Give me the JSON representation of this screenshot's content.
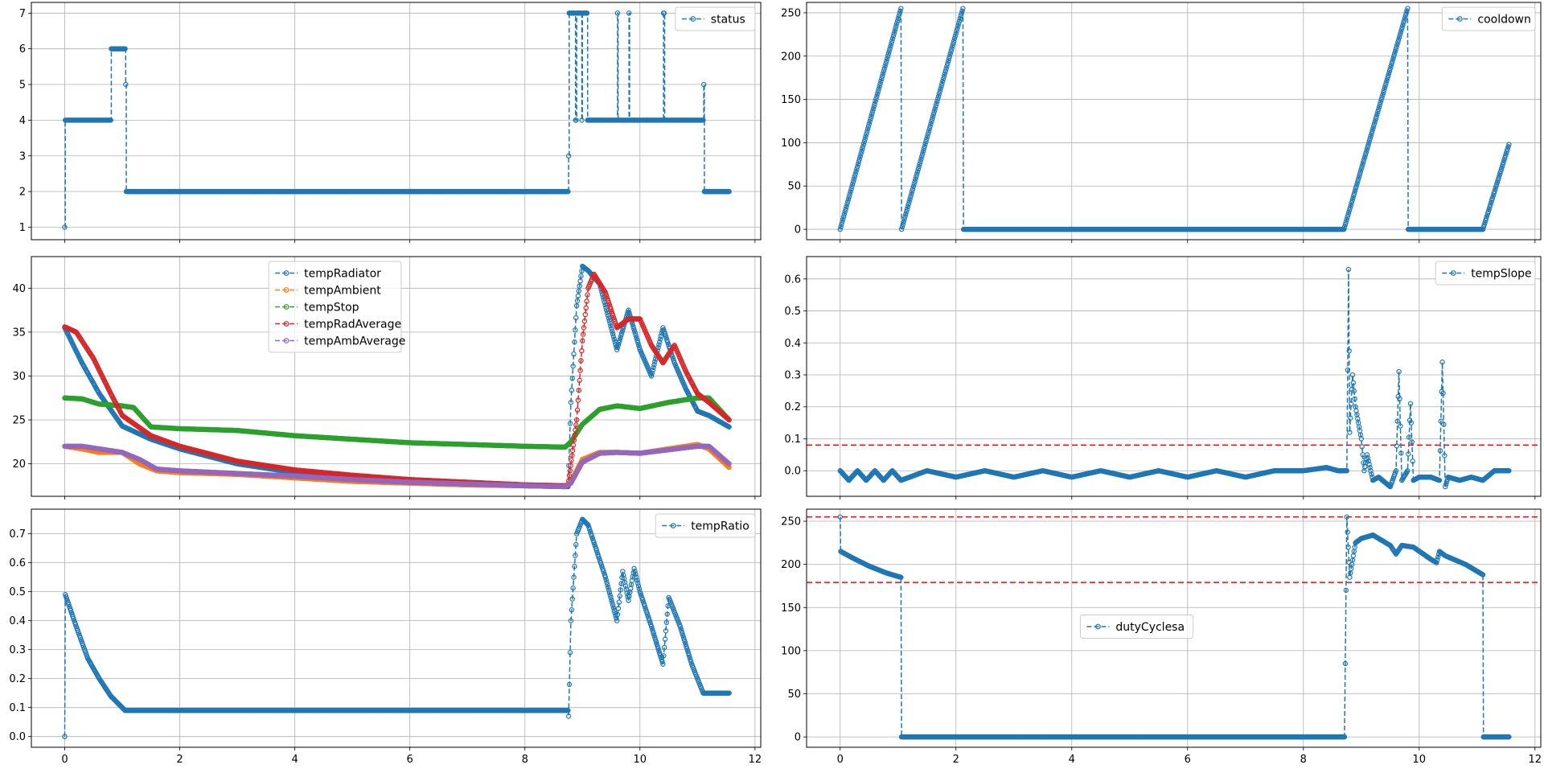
{
  "figure": {
    "title": ""
  },
  "colors": {
    "blue": "#1f77b4",
    "orange": "#ff7f0e",
    "green": "#2ca02c",
    "red": "#d62728",
    "purple": "#9467bd",
    "threshold": "#ff0000"
  },
  "chart_data": [
    {
      "id": "status",
      "type": "line",
      "xlim": [
        -0.58,
        12.1
      ],
      "ylim": [
        0.65,
        7.3
      ],
      "xticks": [
        0,
        2,
        4,
        6,
        8,
        10,
        12
      ],
      "yticks": [
        1,
        2,
        3,
        4,
        5,
        6,
        7
      ],
      "show_xtick_labels": false,
      "grid": true,
      "legend": "top-right",
      "series": [
        {
          "name": "status",
          "color": "#1f77b4",
          "style": "step",
          "x": [
            0,
            0.01,
            0.8,
            0.81,
            1.05,
            1.06,
            1.07,
            8.75,
            8.76,
            8.77,
            8.78,
            8.88,
            8.89,
            8.9,
            8.98,
            8.99,
            9.0,
            9.08,
            9.09,
            9.1,
            9.6,
            9.61,
            9.62,
            9.8,
            9.81,
            9.82,
            10.4,
            10.41,
            10.43,
            11.1,
            11.11,
            11.12,
            11.55
          ],
          "y": [
            1,
            4,
            4,
            6,
            6,
            5,
            2,
            2,
            3,
            7,
            7,
            4,
            4,
            7,
            7,
            4,
            7,
            7,
            4,
            4,
            4,
            7,
            4,
            4,
            7,
            4,
            4,
            7,
            4,
            4,
            5,
            2,
            2
          ]
        }
      ]
    },
    {
      "id": "cooldown",
      "type": "line",
      "xlim": [
        -0.58,
        12.1
      ],
      "ylim": [
        -12,
        262
      ],
      "xticks": [
        0,
        2,
        4,
        6,
        8,
        10,
        12
      ],
      "yticks": [
        0,
        50,
        100,
        150,
        200,
        250
      ],
      "show_xtick_labels": false,
      "grid": true,
      "legend": "top-right",
      "series": [
        {
          "name": "cooldown",
          "color": "#1f77b4",
          "style": "line",
          "x": [
            0,
            1.05,
            1.06,
            2.12,
            2.13,
            8.7,
            9.8,
            9.81,
            11.1,
            11.55
          ],
          "y": [
            0,
            255,
            0,
            255,
            0,
            0,
            255,
            0,
            0,
            98
          ]
        }
      ]
    },
    {
      "id": "temperatures",
      "type": "line",
      "xlim": [
        -0.58,
        12.1
      ],
      "ylim": [
        16.3,
        43.6
      ],
      "xticks": [
        0,
        2,
        4,
        6,
        8,
        10,
        12
      ],
      "yticks": [
        20,
        25,
        30,
        35,
        40
      ],
      "show_xtick_labels": false,
      "grid": true,
      "legend": "top-center",
      "series": [
        {
          "name": "tempRadiator",
          "color": "#1f77b4",
          "style": "line",
          "x": [
            0,
            0.3,
            0.6,
            1.0,
            1.5,
            2.0,
            3.0,
            4.0,
            5.0,
            6.0,
            7.0,
            8.0,
            8.75,
            8.8,
            8.9,
            9.0,
            9.1,
            9.3,
            9.6,
            9.8,
            10.0,
            10.2,
            10.4,
            10.6,
            10.8,
            11.0,
            11.2,
            11.55
          ],
          "y": [
            35.5,
            31.5,
            28.0,
            24.3,
            22.8,
            21.7,
            20.0,
            19.0,
            18.4,
            18.0,
            17.7,
            17.5,
            17.4,
            27.0,
            38.0,
            42.5,
            42.0,
            40.5,
            33.0,
            37.5,
            33.0,
            30.0,
            35.5,
            31.5,
            28.5,
            26.0,
            25.5,
            24.2
          ]
        },
        {
          "name": "tempAmbient",
          "color": "#ff7f0e",
          "style": "line",
          "x": [
            0,
            0.3,
            0.6,
            1.0,
            1.3,
            1.6,
            2.0,
            3.0,
            4.0,
            5.0,
            6.0,
            7.0,
            8.0,
            8.7,
            8.8,
            9.0,
            9.3,
            9.6,
            10.0,
            10.5,
            11.0,
            11.2,
            11.55
          ],
          "y": [
            22.0,
            21.7,
            21.3,
            21.3,
            20.0,
            19.2,
            19.0,
            18.8,
            18.4,
            18.0,
            17.8,
            17.6,
            17.5,
            17.4,
            18.0,
            20.5,
            21.3,
            21.3,
            21.2,
            21.7,
            22.2,
            21.7,
            19.6
          ]
        },
        {
          "name": "tempStop",
          "color": "#2ca02c",
          "style": "line",
          "x": [
            0,
            0.3,
            0.6,
            1.0,
            1.2,
            1.5,
            2.0,
            3.0,
            4.0,
            5.0,
            6.0,
            7.0,
            8.0,
            8.7,
            8.8,
            9.0,
            9.3,
            9.6,
            10.0,
            10.5,
            11.0,
            11.2,
            11.55
          ],
          "y": [
            27.5,
            27.4,
            26.8,
            26.6,
            26.4,
            24.2,
            24.0,
            23.8,
            23.2,
            22.8,
            22.4,
            22.2,
            22.0,
            21.9,
            22.5,
            24.5,
            26.2,
            26.6,
            26.3,
            27.0,
            27.5,
            27.5,
            25.0
          ]
        },
        {
          "name": "tempRadAverage",
          "color": "#d62728",
          "style": "line",
          "x": [
            0,
            0.2,
            0.5,
            0.8,
            1.0,
            1.5,
            2.0,
            3.0,
            4.0,
            5.0,
            6.0,
            7.0,
            8.0,
            8.75,
            8.9,
            9.0,
            9.1,
            9.2,
            9.4,
            9.6,
            9.8,
            10.0,
            10.2,
            10.4,
            10.6,
            10.8,
            11.0,
            11.2,
            11.55
          ],
          "y": [
            35.6,
            35.0,
            32.0,
            28.0,
            25.5,
            23.2,
            22.0,
            20.3,
            19.3,
            18.7,
            18.2,
            17.9,
            17.6,
            17.5,
            25.0,
            34.0,
            40.0,
            41.6,
            39.5,
            35.5,
            36.5,
            36.5,
            33.5,
            31.5,
            33.5,
            30.5,
            28.0,
            27.0,
            25.0
          ]
        },
        {
          "name": "tempAmbAverage",
          "color": "#9467bd",
          "style": "line",
          "x": [
            0,
            0.3,
            0.6,
            1.0,
            1.3,
            1.6,
            2.0,
            3.0,
            4.0,
            5.0,
            6.0,
            7.0,
            8.0,
            8.7,
            8.8,
            9.0,
            9.3,
            9.6,
            10.0,
            10.5,
            11.0,
            11.2,
            11.55
          ],
          "y": [
            22.0,
            22.0,
            21.7,
            21.3,
            20.5,
            19.4,
            19.2,
            18.9,
            18.6,
            18.2,
            17.9,
            17.7,
            17.5,
            17.4,
            17.8,
            20.2,
            21.2,
            21.3,
            21.2,
            21.6,
            22.0,
            22.0,
            20.0
          ]
        }
      ]
    },
    {
      "id": "tempSlope",
      "type": "line",
      "xlim": [
        -0.58,
        12.1
      ],
      "ylim": [
        -0.08,
        0.67
      ],
      "xticks": [
        0,
        2,
        4,
        6,
        8,
        10,
        12
      ],
      "yticks": [
        0.0,
        0.1,
        0.2,
        0.3,
        0.4,
        0.5,
        0.6
      ],
      "show_xtick_labels": false,
      "grid": true,
      "legend": "top-right",
      "hlines": [
        0.08
      ],
      "series": [
        {
          "name": "tempSlope",
          "color": "#1f77b4",
          "style": "line",
          "x": [
            0,
            0.15,
            0.3,
            0.45,
            0.6,
            0.75,
            0.9,
            1.05,
            1.5,
            2.0,
            2.5,
            3.0,
            3.5,
            4.0,
            4.5,
            5.0,
            5.5,
            6.0,
            6.5,
            7.0,
            7.5,
            8.0,
            8.4,
            8.6,
            8.75,
            8.78,
            8.8,
            8.85,
            8.9,
            9.0,
            9.05,
            9.1,
            9.2,
            9.3,
            9.5,
            9.6,
            9.65,
            9.7,
            9.8,
            9.85,
            9.9,
            10.0,
            10.2,
            10.35,
            10.4,
            10.45,
            10.5,
            10.7,
            10.9,
            11.1,
            11.3,
            11.55
          ],
          "y": [
            0,
            -0.03,
            0,
            -0.03,
            0,
            -0.03,
            0,
            -0.03,
            0,
            -0.02,
            0,
            -0.02,
            0,
            -0.02,
            0,
            -0.02,
            0,
            -0.02,
            0,
            -0.02,
            0,
            0,
            0.01,
            0,
            0,
            0.63,
            0.12,
            0.3,
            0.2,
            0.1,
            0.0,
            0.05,
            -0.03,
            -0.02,
            -0.05,
            0.0,
            0.31,
            -0.03,
            0.0,
            0.21,
            -0.03,
            -0.02,
            -0.02,
            -0.03,
            0.34,
            -0.05,
            -0.02,
            -0.03,
            -0.02,
            -0.03,
            0.0,
            0.0
          ]
        }
      ]
    },
    {
      "id": "tempRatio",
      "type": "line",
      "xlim": [
        -0.58,
        12.1
      ],
      "ylim": [
        -0.037,
        0.785
      ],
      "xticks": [
        0,
        2,
        4,
        6,
        8,
        10,
        12
      ],
      "yticks": [
        0.0,
        0.1,
        0.2,
        0.3,
        0.4,
        0.5,
        0.6,
        0.7
      ],
      "xtick_labels": [
        "0",
        "2",
        "4",
        "6",
        "8",
        "10",
        "12"
      ],
      "show_xtick_labels": true,
      "grid": true,
      "legend": "top-right",
      "series": [
        {
          "name": "tempRatio",
          "color": "#1f77b4",
          "style": "line",
          "x": [
            0,
            0.01,
            0.2,
            0.4,
            0.6,
            0.8,
            1.0,
            1.05,
            8.75,
            8.76,
            8.8,
            8.9,
            9.0,
            9.1,
            9.2,
            9.4,
            9.6,
            9.7,
            9.8,
            9.9,
            10.0,
            10.2,
            10.4,
            10.5,
            10.7,
            10.9,
            11.1,
            11.55
          ],
          "y": [
            0,
            0.49,
            0.38,
            0.27,
            0.2,
            0.14,
            0.1,
            0.09,
            0.09,
            0.07,
            0.4,
            0.7,
            0.75,
            0.73,
            0.67,
            0.55,
            0.4,
            0.57,
            0.47,
            0.58,
            0.5,
            0.38,
            0.25,
            0.48,
            0.38,
            0.25,
            0.15,
            0.15
          ]
        }
      ]
    },
    {
      "id": "dutyCyclesa",
      "type": "line",
      "xlim": [
        -0.58,
        12.1
      ],
      "ylim": [
        -12,
        264
      ],
      "xticks": [
        0,
        2,
        4,
        6,
        8,
        10,
        12
      ],
      "yticks": [
        0,
        50,
        100,
        150,
        200,
        250
      ],
      "xtick_labels": [
        "0",
        "2",
        "4",
        "6",
        "8",
        "10",
        "12"
      ],
      "show_xtick_labels": true,
      "grid": true,
      "legend": "center",
      "hlines": [
        255,
        179
      ],
      "series": [
        {
          "name": "dutyCyclesa",
          "color": "#1f77b4",
          "style": "line",
          "x": [
            0,
            0.01,
            0.2,
            0.5,
            0.8,
            1.05,
            1.06,
            8.7,
            8.71,
            8.75,
            8.8,
            8.9,
            9.0,
            9.2,
            9.5,
            9.6,
            9.7,
            9.9,
            10.2,
            10.3,
            10.35,
            10.45,
            10.8,
            11.05,
            11.1,
            11.11,
            11.55
          ],
          "y": [
            255,
            215,
            208,
            198,
            190,
            185,
            0,
            0,
            0,
            255,
            185,
            225,
            230,
            234,
            222,
            212,
            222,
            220,
            206,
            202,
            215,
            210,
            200,
            190,
            188,
            0,
            0
          ]
        }
      ]
    }
  ]
}
